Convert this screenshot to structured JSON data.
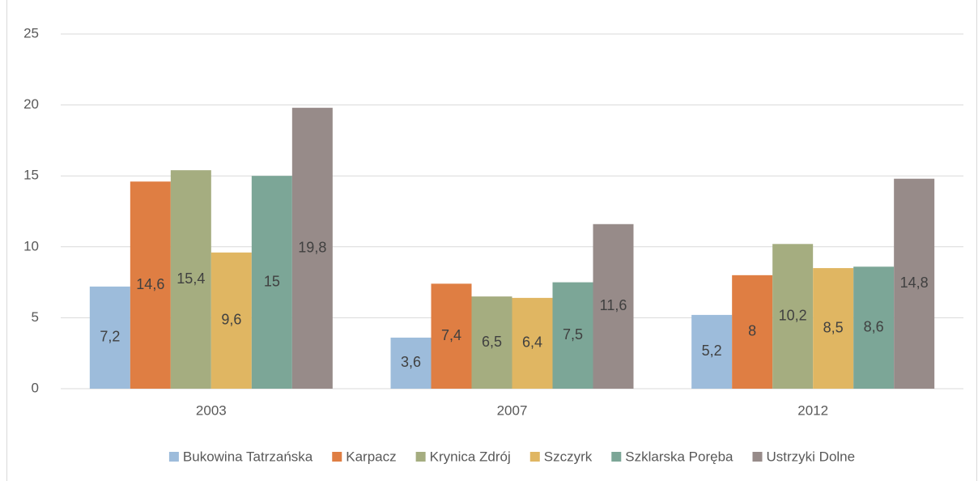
{
  "chart_data": {
    "type": "bar",
    "categories": [
      "2003",
      "2007",
      "2012"
    ],
    "series": [
      {
        "name": "Bukowina Tatrzańska",
        "color": "#9dbcdb",
        "values": [
          7.2,
          3.6,
          5.2
        ],
        "value_labels": [
          "7,2",
          "3,6",
          "5,2"
        ]
      },
      {
        "name": "Karpacz",
        "color": "#df7e43",
        "values": [
          14.6,
          7.4,
          8
        ],
        "value_labels": [
          "14,6",
          "7,4",
          "8"
        ]
      },
      {
        "name": "Krynica Zdrój",
        "color": "#a5ad80",
        "values": [
          15.4,
          6.5,
          10.2
        ],
        "value_labels": [
          "15,4",
          "6,5",
          "10,2"
        ]
      },
      {
        "name": "Szczyrk",
        "color": "#e0b662",
        "values": [
          9.6,
          6.4,
          8.5
        ],
        "value_labels": [
          "9,6",
          "6,4",
          "8,5"
        ]
      },
      {
        "name": "Szklarska Poręba",
        "color": "#7ca697",
        "values": [
          15,
          7.5,
          8.6
        ],
        "value_labels": [
          "15",
          "7,5",
          "8,6"
        ]
      },
      {
        "name": "Ustrzyki Dolne",
        "color": "#978b89",
        "values": [
          19.8,
          11.6,
          14.8
        ],
        "value_labels": [
          "19,8",
          "11,6",
          "14,8"
        ]
      }
    ],
    "ylim": [
      0,
      25
    ],
    "yticks": [
      0,
      5,
      10,
      15,
      20,
      25
    ],
    "grid": true,
    "legend": "bottom"
  }
}
